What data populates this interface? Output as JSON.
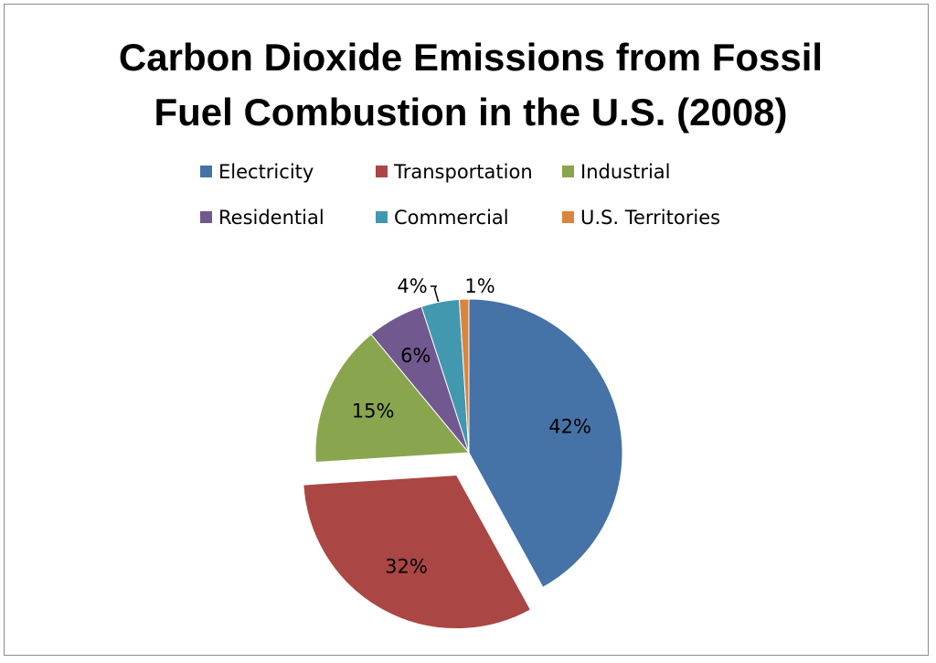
{
  "chart_data": {
    "type": "pie",
    "title_lines": [
      "Carbon Dioxide Emissions from Fossil",
      "Fuel Combustion in the U.S. (2008)"
    ],
    "legend_position": "top",
    "categories": [
      "Electricity",
      "Transportation",
      "Industrial",
      "Residential",
      "Commercial",
      "U.S. Territories"
    ],
    "values": [
      42,
      32,
      15,
      6,
      4,
      1
    ],
    "data_labels": [
      "42%",
      "32%",
      "15%",
      "6%",
      "4%",
      "1%"
    ],
    "colors": [
      "#4572a7",
      "#aa4643",
      "#89a54e",
      "#71588f",
      "#4198af",
      "#db843d"
    ],
    "exploded": "Transportation"
  }
}
